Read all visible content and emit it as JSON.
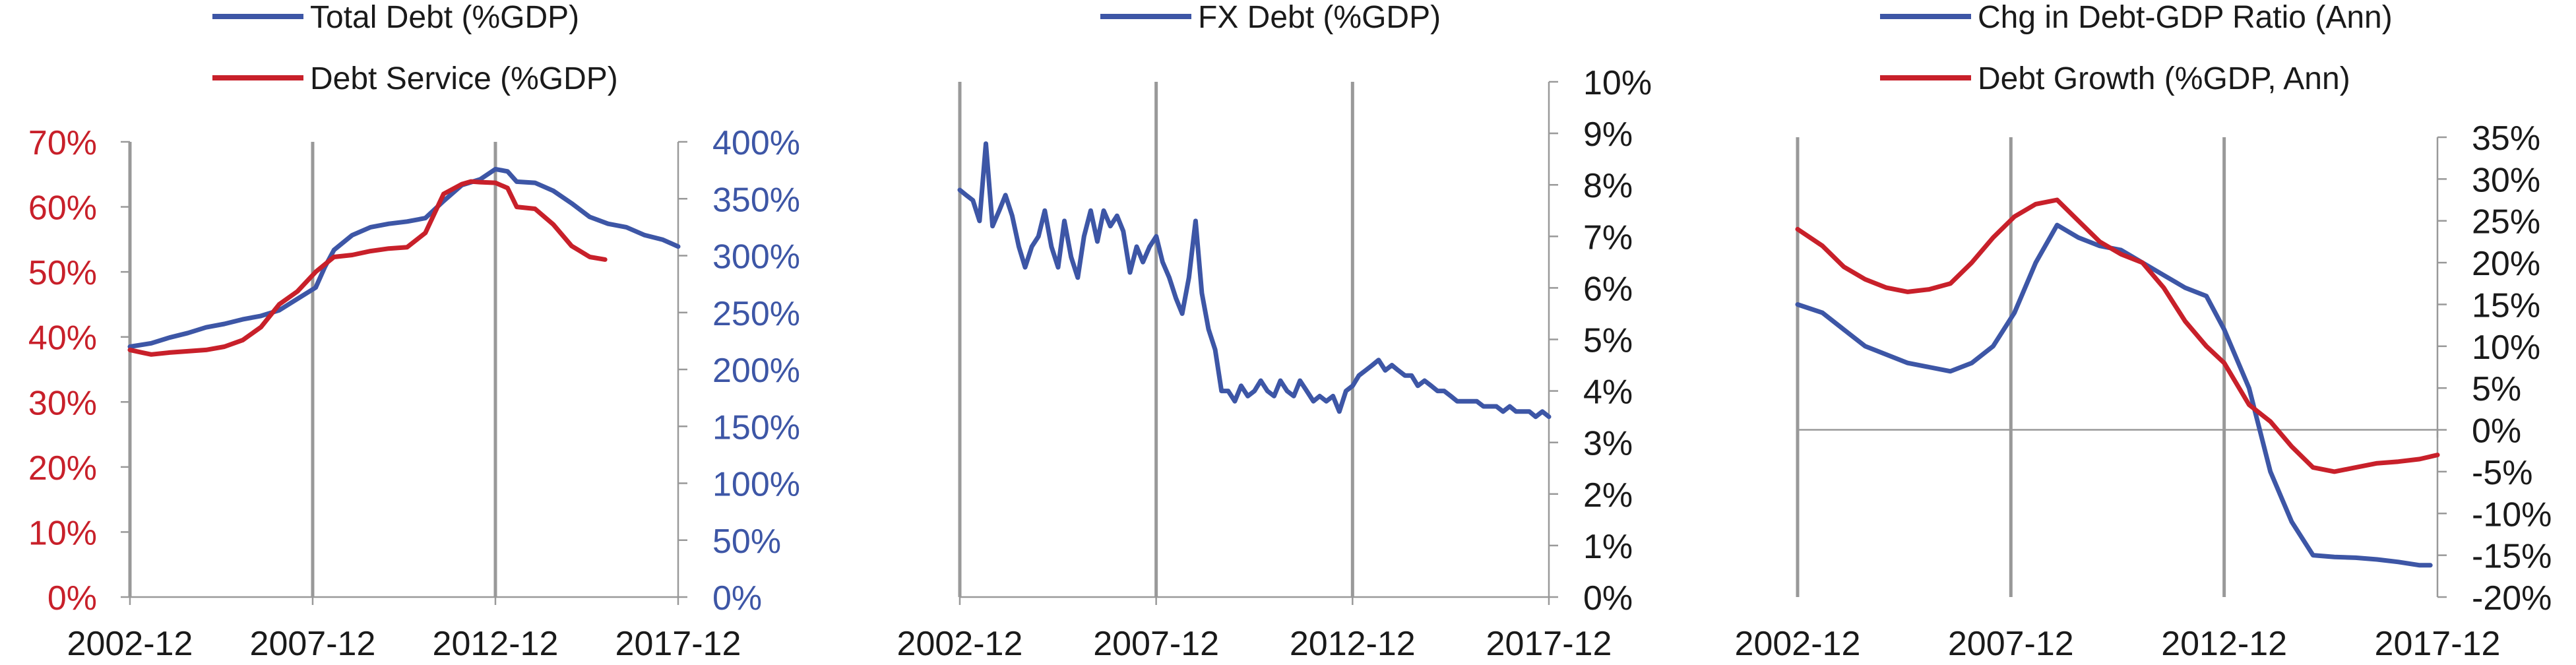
{
  "colors": {
    "blue": "#3d56a6",
    "red": "#c8202a",
    "axis": "#999999",
    "tick_text": "#1a1a1a"
  },
  "chart_data": [
    {
      "type": "line",
      "title": "",
      "dual_axis": true,
      "xlabel": "",
      "x_ticks": [
        "2002-12",
        "2007-12",
        "2012-12",
        "2017-12"
      ],
      "x_range": [
        2002.917,
        2017.917
      ],
      "vertical_gridlines": [
        "2007-12",
        "2012-12"
      ],
      "left_axis": {
        "label": "",
        "color": "#c8202a",
        "ylim": [
          0,
          70
        ],
        "ticks": [
          "0%",
          "10%",
          "20%",
          "30%",
          "40%",
          "50%",
          "60%",
          "70%"
        ],
        "tick_values": [
          0,
          10,
          20,
          30,
          40,
          50,
          60,
          70
        ]
      },
      "right_axis": {
        "label": "",
        "color": "#3d56a6",
        "ylim": [
          0,
          400
        ],
        "ticks": [
          "0%",
          "50%",
          "100%",
          "150%",
          "200%",
          "250%",
          "300%",
          "350%",
          "400%"
        ],
        "tick_values": [
          0,
          50,
          100,
          150,
          200,
          250,
          300,
          350,
          400
        ]
      },
      "legend_placement": "top",
      "series": [
        {
          "name": "Total Debt (%GDP)",
          "axis": "right",
          "color": "#3d56a6",
          "x": [
            2002.917,
            2003.5,
            2004.0,
            2004.5,
            2005.0,
            2005.5,
            2006.0,
            2006.5,
            2007.0,
            2007.5,
            2008.0,
            2008.25,
            2008.5,
            2009.0,
            2009.5,
            2010.0,
            2010.5,
            2011.0,
            2011.5,
            2012.0,
            2012.5,
            2012.917,
            2013.25,
            2013.5,
            2014.0,
            2014.5,
            2015.0,
            2015.5,
            2016.0,
            2016.5,
            2017.0,
            2017.5,
            2017.917
          ],
          "y": [
            220,
            223,
            228,
            232,
            237,
            240,
            244,
            247,
            252,
            262,
            272,
            290,
            305,
            318,
            325,
            328,
            330,
            333,
            348,
            362,
            367,
            376,
            374,
            365,
            364,
            357,
            346,
            334,
            328,
            325,
            318,
            314,
            308
          ]
        },
        {
          "name": "Debt Service (%GDP)",
          "axis": "left",
          "color": "#c8202a",
          "x": [
            2002.917,
            2003.25,
            2003.5,
            2004.0,
            2004.5,
            2005.0,
            2005.5,
            2006.0,
            2006.5,
            2007.0,
            2007.5,
            2008.0,
            2008.5,
            2009.0,
            2009.5,
            2010.0,
            2010.5,
            2011.0,
            2011.5,
            2012.0,
            2012.25,
            2012.5,
            2012.917,
            2013.25,
            2013.5,
            2014.0,
            2014.5,
            2015.0,
            2015.5,
            2015.917
          ],
          "y": [
            38.0,
            37.6,
            37.3,
            37.6,
            37.8,
            38.0,
            38.5,
            39.5,
            41.5,
            45.0,
            47.0,
            50.0,
            52.3,
            52.6,
            53.2,
            53.6,
            53.8,
            56.0,
            62.0,
            63.5,
            63.9,
            63.8,
            63.7,
            62.9,
            60.0,
            59.7,
            57.3,
            54.0,
            52.3,
            51.9
          ]
        }
      ]
    },
    {
      "type": "line",
      "title": "",
      "xlabel": "",
      "x_ticks": [
        "2002-12",
        "2007-12",
        "2012-12",
        "2017-12"
      ],
      "x_range": [
        2002.917,
        2017.917
      ],
      "vertical_gridlines": [
        "2007-12",
        "2012-12"
      ],
      "right_axis": {
        "label": "",
        "ylim": [
          0,
          10
        ],
        "ticks": [
          "0%",
          "1%",
          "2%",
          "3%",
          "4%",
          "5%",
          "6%",
          "7%",
          "8%",
          "9%",
          "10%"
        ],
        "tick_values": [
          0,
          1,
          2,
          3,
          4,
          5,
          6,
          7,
          8,
          9,
          10
        ]
      },
      "legend_placement": "top",
      "series": [
        {
          "name": "FX Debt (%GDP)",
          "axis": "right",
          "color": "#3d56a6",
          "x": [
            2002.917,
            2003.08,
            2003.25,
            2003.42,
            2003.58,
            2003.75,
            2003.92,
            2004.08,
            2004.25,
            2004.42,
            2004.58,
            2004.75,
            2004.92,
            2005.08,
            2005.25,
            2005.42,
            2005.58,
            2005.75,
            2005.92,
            2006.08,
            2006.25,
            2006.42,
            2006.58,
            2006.75,
            2006.92,
            2007.08,
            2007.25,
            2007.42,
            2007.58,
            2007.75,
            2007.92,
            2008.08,
            2008.25,
            2008.42,
            2008.58,
            2008.75,
            2008.92,
            2009.08,
            2009.25,
            2009.42,
            2009.58,
            2009.75,
            2009.92,
            2010.08,
            2010.25,
            2010.42,
            2010.58,
            2010.75,
            2010.92,
            2011.08,
            2011.25,
            2011.42,
            2011.58,
            2011.75,
            2011.92,
            2012.08,
            2012.25,
            2012.42,
            2012.58,
            2012.75,
            2012.92,
            2013.08,
            2013.25,
            2013.42,
            2013.58,
            2013.75,
            2013.92,
            2014.08,
            2014.25,
            2014.42,
            2014.58,
            2014.75,
            2014.92,
            2015.08,
            2015.25,
            2015.42,
            2015.58,
            2015.75,
            2015.92,
            2016.08,
            2016.25,
            2016.42,
            2016.58,
            2016.75,
            2016.92,
            2017.08,
            2017.25,
            2017.42,
            2017.58,
            2017.75,
            2017.917
          ],
          "y": [
            7.9,
            7.8,
            7.7,
            7.3,
            8.8,
            7.2,
            7.5,
            7.8,
            7.4,
            6.8,
            6.4,
            6.8,
            7.0,
            7.5,
            6.8,
            6.4,
            7.3,
            6.6,
            6.2,
            7.0,
            7.5,
            6.9,
            7.5,
            7.2,
            7.4,
            7.1,
            6.3,
            6.8,
            6.5,
            6.8,
            7.0,
            6.5,
            6.2,
            5.8,
            5.5,
            6.2,
            7.3,
            5.9,
            5.2,
            4.8,
            4.0,
            4.0,
            3.8,
            4.1,
            3.9,
            4.0,
            4.2,
            4.0,
            3.9,
            4.2,
            4.0,
            3.9,
            4.2,
            4.0,
            3.8,
            3.9,
            3.8,
            3.9,
            3.6,
            4.0,
            4.1,
            4.3,
            4.4,
            4.5,
            4.6,
            4.4,
            4.5,
            4.4,
            4.3,
            4.3,
            4.1,
            4.2,
            4.1,
            4.0,
            4.0,
            3.9,
            3.8,
            3.8,
            3.8,
            3.8,
            3.7,
            3.7,
            3.7,
            3.6,
            3.7,
            3.6,
            3.6,
            3.6,
            3.5,
            3.6,
            3.5
          ]
        }
      ]
    },
    {
      "type": "line",
      "title": "",
      "xlabel": "",
      "x_ticks": [
        "2002-12",
        "2007-12",
        "2012-12",
        "2017-12"
      ],
      "x_range": [
        2002.917,
        2017.917
      ],
      "vertical_gridlines": [
        "2007-12",
        "2012-12"
      ],
      "right_axis": {
        "label": "",
        "ylim": [
          -20,
          35
        ],
        "ticks": [
          "-20%",
          "-15%",
          "-10%",
          "-5%",
          "0%",
          "5%",
          "10%",
          "15%",
          "20%",
          "25%",
          "30%",
          "35%"
        ],
        "tick_values": [
          -20,
          -15,
          -10,
          -5,
          0,
          5,
          10,
          15,
          20,
          25,
          30,
          35
        ]
      },
      "legend_placement": "top",
      "series": [
        {
          "name": "Chg in Debt-GDP Ratio (Ann)",
          "axis": "right",
          "color": "#3d56a6",
          "x": [
            2002.917,
            2003.5,
            2004.0,
            2004.5,
            2005.0,
            2005.5,
            2006.0,
            2006.5,
            2007.0,
            2007.5,
            2008.0,
            2008.5,
            2009.0,
            2009.5,
            2010.0,
            2010.5,
            2011.0,
            2011.5,
            2012.0,
            2012.5,
            2012.917,
            2013.5,
            2014.0,
            2014.5,
            2015.0,
            2015.5,
            2016.0,
            2016.5,
            2017.0,
            2017.5,
            2017.75
          ],
          "y": [
            15.0,
            14.0,
            12.0,
            10.0,
            9.0,
            8.0,
            7.5,
            7.0,
            8.0,
            10.0,
            14.0,
            20.0,
            24.5,
            23.0,
            22.0,
            21.5,
            20.0,
            18.5,
            17.0,
            16.0,
            12.0,
            5.0,
            -5.0,
            -11.0,
            -15.0,
            -15.2,
            -15.3,
            -15.5,
            -15.8,
            -16.2,
            -16.2
          ]
        },
        {
          "name": "Debt Growth (%GDP, Ann)",
          "axis": "right",
          "color": "#c8202a",
          "x": [
            2002.917,
            2003.5,
            2004.0,
            2004.5,
            2005.0,
            2005.5,
            2006.0,
            2006.5,
            2007.0,
            2007.5,
            2008.0,
            2008.5,
            2009.0,
            2009.5,
            2010.0,
            2010.5,
            2011.0,
            2011.5,
            2012.0,
            2012.5,
            2012.917,
            2013.5,
            2014.0,
            2014.5,
            2015.0,
            2015.5,
            2016.0,
            2016.5,
            2017.0,
            2017.5,
            2017.917
          ],
          "y": [
            24.0,
            22.0,
            19.5,
            18.0,
            17.0,
            16.5,
            16.8,
            17.5,
            20.0,
            23.0,
            25.5,
            27.0,
            27.5,
            25.0,
            22.5,
            21.0,
            20.0,
            17.0,
            13.0,
            10.0,
            8.0,
            3.0,
            1.0,
            -2.0,
            -4.5,
            -5.0,
            -4.5,
            -4.0,
            -3.8,
            -3.5,
            -3.0
          ]
        }
      ]
    }
  ]
}
